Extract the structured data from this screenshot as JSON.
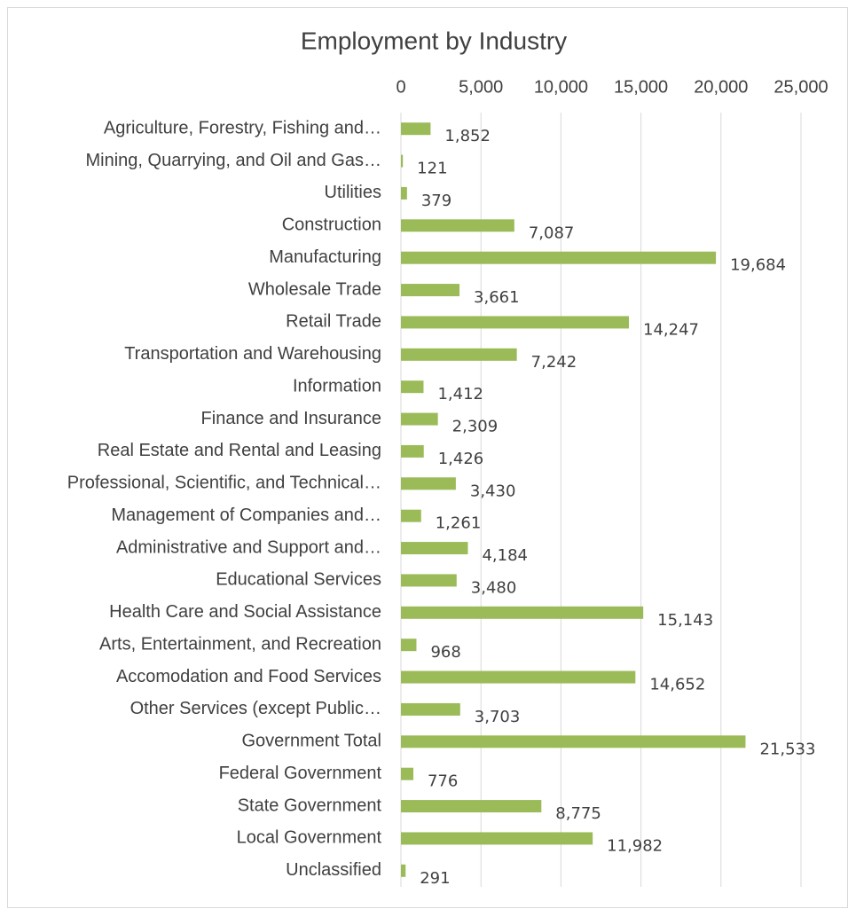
{
  "chart_data": {
    "type": "bar",
    "orientation": "horizontal",
    "title": "Employment by Industry",
    "categories": [
      "Agriculture, Forestry, Fishing and…",
      "Mining, Quarrying, and Oil and Gas…",
      "Utilities",
      "Construction",
      "Manufacturing",
      "Wholesale Trade",
      "Retail Trade",
      "Transportation and Warehousing",
      "Information",
      "Finance and Insurance",
      "Real Estate and Rental and Leasing",
      "Professional, Scientific, and Technical…",
      "Management of Companies and…",
      "Administrative and Support and…",
      "Educational Services",
      "Health Care and Social Assistance",
      "Arts, Entertainment, and Recreation",
      "Accomodation and Food Services",
      "Other Services (except Public…",
      "Government Total",
      "Federal Government",
      "State Government",
      "Local Government",
      "Unclassified"
    ],
    "values": [
      1852,
      121,
      379,
      7087,
      19684,
      3661,
      14247,
      7242,
      1412,
      2309,
      1426,
      3430,
      1261,
      4184,
      3480,
      15143,
      968,
      14652,
      3703,
      21533,
      776,
      8775,
      11982,
      291
    ],
    "value_labels": [
      "1,852",
      "121",
      "379",
      "7,087",
      "19,684",
      "3,661",
      "14,247",
      "7,242",
      "1,412",
      "2,309",
      "1,426",
      "3,430",
      "1,261",
      "4,184",
      "3,480",
      "15,143",
      "968",
      "14,652",
      "3,703",
      "21,533",
      "776",
      "8,775",
      "11,982",
      "291"
    ],
    "color": "#9bbb59",
    "xlim": [
      0,
      25000
    ],
    "xticks": [
      0,
      {
        "value": 5000,
        "label": "5,000"
      },
      {
        "value": 10000,
        "label": "10,000"
      },
      {
        "value": 15000,
        "label": "15,000"
      },
      {
        "value": 20000,
        "label": "20,000"
      },
      {
        "value": 25000,
        "label": "25,000"
      }
    ],
    "grid": true
  }
}
